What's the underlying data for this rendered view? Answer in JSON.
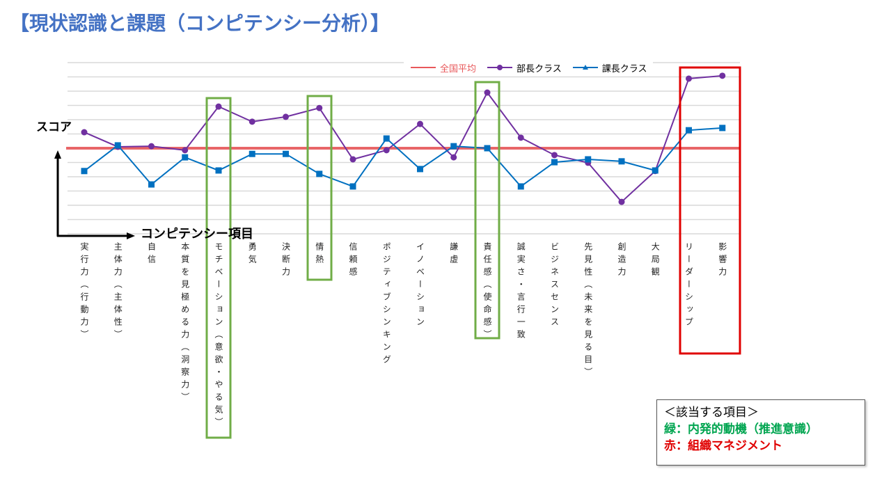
{
  "page": {
    "title": "【現状認識と課題（コンピテンシー分析）】",
    "y_axis_label": "スコア",
    "x_axis_label": "コンピテンシー項目"
  },
  "legend": {
    "items": [
      {
        "label": "全国平均",
        "color": "#e8585a",
        "marker": "none"
      },
      {
        "label": "部長クラス",
        "color": "#7030a0",
        "marker": "circle"
      },
      {
        "label": "課長クラス",
        "color": "#0070c0",
        "marker": "triangle"
      }
    ]
  },
  "note_box": {
    "title": "＜該当する項目＞",
    "green_line": "緑：内発的動機（推進意識）",
    "red_line": "赤：組織マネジメント",
    "green_color": "#00a550",
    "red_color": "#e00000"
  },
  "highlights": {
    "green": [
      "モチベーション（意欲・やる気）",
      "情熱",
      "責任感（使命感）"
    ],
    "red": [
      "リーダーシップ",
      "影響力"
    ],
    "green_box_color": "#70ad47",
    "red_box_color": "#e00000"
  },
  "chart_data": {
    "type": "line",
    "title": "",
    "xlabel": "コンピテンシー項目",
    "ylabel": "スコア",
    "ylim": [
      20,
      80
    ],
    "grid": true,
    "legend_position": "top",
    "note": "Values are relative scores estimated from pixel positions; national average = 50, each gridline ≈ 5 points (no tick labels shown).",
    "categories": [
      "実行力（行動力）",
      "主体力（主体性）",
      "自信",
      "本質を見極める力（洞察力）",
      "モチベーション（意欲・やる気）",
      "勇気",
      "決断力",
      "情熱",
      "信頼感",
      "ポジティブシンキング",
      "イノベーション",
      "謙虚",
      "責任感（使命感）",
      "誠実さ・言行一致",
      "ビジネスセンス",
      "先見性（未来を見る目）",
      "創造力",
      "大局観",
      "リーダーシップ",
      "影響力"
    ],
    "series": [
      {
        "name": "全国平均",
        "color": "#e8585a",
        "values": [
          50,
          50,
          50,
          50,
          50,
          50,
          50,
          50,
          50,
          50,
          50,
          50,
          50,
          50,
          50,
          50,
          50,
          50,
          50,
          50
        ]
      },
      {
        "name": "部長クラス",
        "color": "#7030a0",
        "values": [
          55.6,
          50.5,
          50.7,
          49.3,
          64.6,
          59.3,
          61.0,
          64.1,
          46.1,
          49.3,
          58.5,
          46.8,
          69.5,
          53.7,
          47.6,
          44.9,
          31.2,
          42.0,
          74.4,
          75.4
        ]
      },
      {
        "name": "課長クラス",
        "color": "#0070c0",
        "values": [
          42.0,
          51.0,
          37.3,
          46.8,
          42.2,
          48.0,
          48.0,
          41.0,
          36.6,
          53.4,
          42.7,
          50.7,
          50.0,
          36.6,
          45.1,
          46.1,
          45.4,
          42.2,
          56.3,
          57.1
        ]
      }
    ]
  }
}
